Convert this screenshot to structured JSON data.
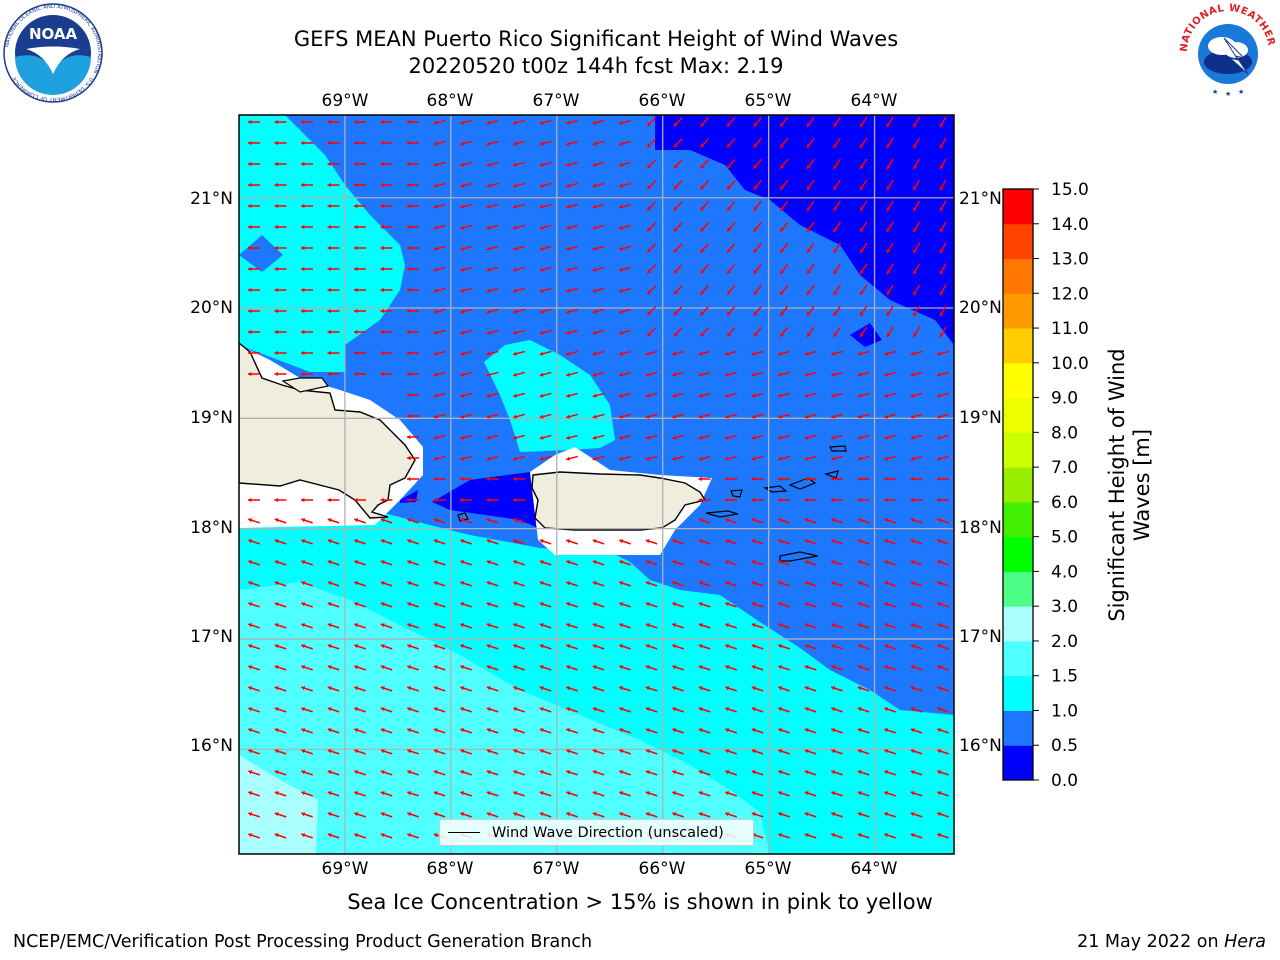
{
  "title": {
    "line1": "GEFS MEAN Puerto Rico Significant Height of Wind Waves",
    "line2": "20220520 t00z 144h fcst   Max: 2.19"
  },
  "map": {
    "lon_ticks": [
      "69°W",
      "68°W",
      "67°W",
      "66°W",
      "65°W",
      "64°W"
    ],
    "lat_ticks": [
      "21°N",
      "20°N",
      "19°N",
      "18°N",
      "17°N",
      "16°N"
    ],
    "lon_values": [
      -69,
      -68,
      -67,
      -66,
      -65,
      -64
    ],
    "lat_values": [
      21,
      20,
      19,
      18,
      17,
      16
    ],
    "lon_range": [
      -70.0,
      -63.25
    ],
    "lat_range": [
      15.05,
      21.75
    ],
    "wind_wave_direction": "westward, turning southwest in the northeast corner"
  },
  "legend": {
    "label": "Wind Wave Direction (unscaled)"
  },
  "colorbar": {
    "label": "Significant Height of Wind Waves [m]",
    "tick_labels": [
      "15.0",
      "14.0",
      "13.0",
      "12.0",
      "11.0",
      "10.0",
      "9.0",
      "8.0",
      "7.0",
      "6.0",
      "5.0",
      "4.0",
      "3.0",
      "2.0",
      "1.5",
      "1.0",
      "0.5",
      "0.0"
    ],
    "levels": [
      0.0,
      0.5,
      1.0,
      1.5,
      2.0,
      3.0,
      4.0,
      5.0,
      6.0,
      7.0,
      8.0,
      9.0,
      10.0,
      11.0,
      12.0,
      13.0,
      14.0,
      15.0
    ],
    "colors": [
      "#0000ff",
      "#1e78ff",
      "#00ffff",
      "#50ffff",
      "#aaffff",
      "#4dff88",
      "#00ff00",
      "#44ee00",
      "#99ee00",
      "#ccff00",
      "#eeff00",
      "#ffff00",
      "#ffcc00",
      "#ff9900",
      "#ff7700",
      "#ff4400",
      "#ff0000"
    ]
  },
  "caption": "Sea Ice Concentration > 15% is shown in pink to yellow",
  "footer": {
    "left": "NCEP/EMC/Verification Post Processing Product Generation Branch",
    "right_prefix": "21 May 2022 on ",
    "right_host": "Hera"
  },
  "logos": {
    "noaa_text": "NOAA",
    "noaa_ring": "NATIONAL OCEANIC AND ATMOSPHERIC ADMINISTRATION · U.S. DEPARTMENT OF COMMERCE",
    "nws_ring": "NATIONAL WEATHER SERVICE"
  },
  "colors": {
    "land": "#efedde",
    "arrow": "#ff0000",
    "grid": "#b0b0b0"
  }
}
